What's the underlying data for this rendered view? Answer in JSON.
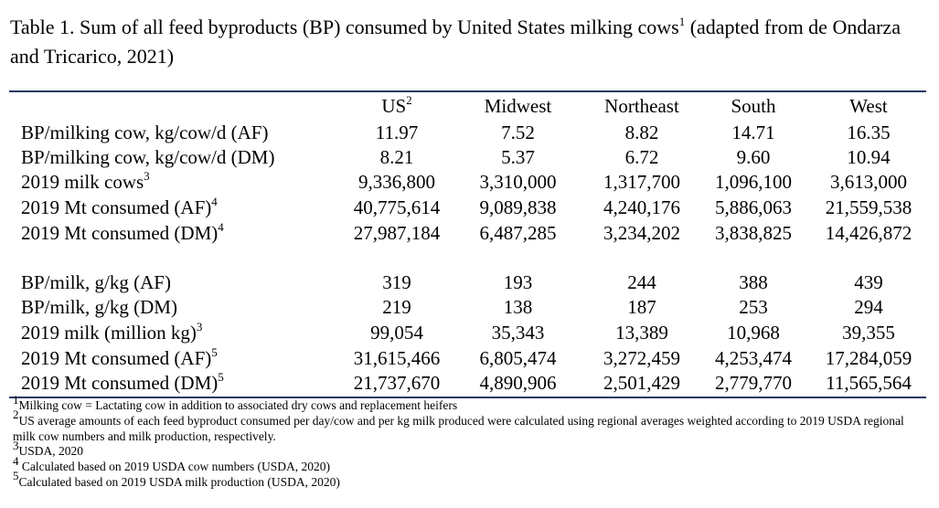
{
  "caption": {
    "text": "Table 1.  Sum of all feed byproducts (BP) consumed by United States milking cows",
    "sup": "1",
    "text2": " (adapted from de Ondarza and Tricarico, 2021)"
  },
  "header": [
    {
      "text": "US",
      "sup": "2"
    },
    {
      "text": "Midwest",
      "sup": ""
    },
    {
      "text": "Northeast",
      "sup": ""
    },
    {
      "text": "South",
      "sup": ""
    },
    {
      "text": "West",
      "sup": ""
    }
  ],
  "section1": [
    {
      "label": "BP/milking cow, kg/cow/d (AF)",
      "sup": "",
      "values": [
        "11.97",
        "7.52",
        "8.82",
        "14.71",
        "16.35"
      ]
    },
    {
      "label": "BP/milking cow, kg/cow/d (DM)",
      "sup": "",
      "values": [
        "8.21",
        "5.37",
        "6.72",
        "9.60",
        "10.94"
      ]
    },
    {
      "label": "2019 milk cows",
      "sup": "3",
      "values": [
        "9,336,800",
        "3,310,000",
        "1,317,700",
        "1,096,100",
        "3,613,000"
      ]
    },
    {
      "label": "2019 Mt consumed (AF)",
      "sup": "4",
      "values": [
        "40,775,614",
        "9,089,838",
        "4,240,176",
        "5,886,063",
        "21,559,538"
      ]
    },
    {
      "label": "2019 Mt consumed (DM)",
      "sup": "4",
      "values": [
        "27,987,184",
        "6,487,285",
        "3,234,202",
        "3,838,825",
        "14,426,872"
      ]
    }
  ],
  "section2": [
    {
      "label": "BP/milk, g/kg (AF)",
      "sup": "",
      "values": [
        "319",
        "193",
        "244",
        "388",
        "439"
      ]
    },
    {
      "label": "BP/milk, g/kg (DM)",
      "sup": "",
      "values": [
        "219",
        "138",
        "187",
        "253",
        "294"
      ]
    },
    {
      "label": "2019 milk (million kg)",
      "sup": "3",
      "values": [
        "99,054",
        "35,343",
        "13,389",
        "10,968",
        "39,355"
      ]
    },
    {
      "label": "2019 Mt consumed (AF)",
      "sup": "5",
      "values": [
        "31,615,466",
        "6,805,474",
        "3,272,459",
        "4,253,474",
        "17,284,059"
      ]
    },
    {
      "label": "2019 Mt consumed (DM)",
      "sup": "5",
      "values": [
        "21,737,670",
        "4,890,906",
        "2,501,429",
        "2,779,770",
        "11,565,564"
      ]
    }
  ],
  "footnotes": [
    {
      "sup": "1",
      "text": "Milking cow = Lactating cow in addition to associated dry cows and replacement heifers"
    },
    {
      "sup": "2",
      "text": "US average amounts of each feed byproduct consumed per day/cow and per kg milk produced were calculated using regional averages weighted according to 2019 USDA regional milk cow numbers and milk production, respectively."
    },
    {
      "sup": "3",
      "text": "USDA, 2020"
    },
    {
      "sup": "4",
      "text": " Calculated based on 2019 USDA cow numbers (USDA, 2020)"
    },
    {
      "sup": "5",
      "text": "Calculated based on 2019 USDA milk production (USDA, 2020)"
    }
  ]
}
